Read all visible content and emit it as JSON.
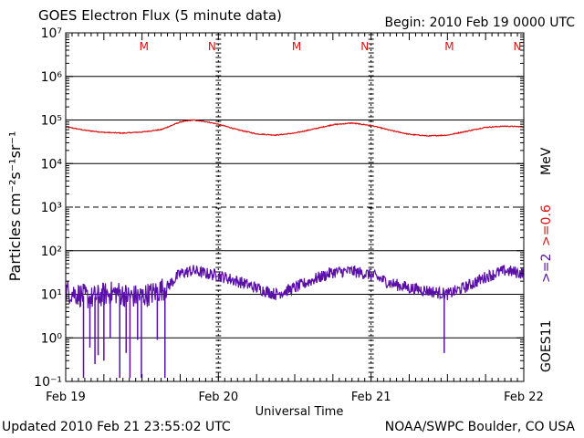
{
  "header": {
    "title": "GOES Electron Flux (5 minute data)",
    "begin": "Begin: 2010 Feb 19 0000 UTC"
  },
  "footer": {
    "updated": "Updated 2010 Feb 21 23:55:02 UTC",
    "credit": "NOAA/SWPC Boulder, CO USA"
  },
  "colors": {
    "series_2mev": "#5a0fa8",
    "series_06mev": "#dd1111",
    "marker_text": "#dd1111"
  },
  "chart_data": {
    "type": "line",
    "xlabel": "Universal Time",
    "ylabel": "Particles cm⁻²s⁻¹sr⁻¹",
    "y_scale": "log",
    "xlim_hours": [
      0,
      72
    ],
    "ylim": [
      0.1,
      10000000
    ],
    "y_ticks": [
      {
        "value": 0.1,
        "label": "10⁻¹"
      },
      {
        "value": 1,
        "label": "10⁰"
      },
      {
        "value": 10,
        "label": "10¹"
      },
      {
        "value": 100,
        "label": "10²"
      },
      {
        "value": 1000,
        "label": "10³"
      },
      {
        "value": 10000,
        "label": "10⁴"
      },
      {
        "value": 100000,
        "label": "10⁵"
      },
      {
        "value": 1000000,
        "label": "10⁶"
      },
      {
        "value": 10000000,
        "label": "10⁷"
      }
    ],
    "x_ticks": [
      {
        "hour": 0,
        "label": "Feb 19"
      },
      {
        "hour": 24,
        "label": "Feb 20"
      },
      {
        "hour": 48,
        "label": "Feb 21"
      },
      {
        "hour": 72,
        "label": "Feb 22"
      }
    ],
    "dashed_gridline_value": 1000,
    "day_dividers_hours": [
      24,
      48
    ],
    "markers": [
      {
        "hour": 12.3,
        "label": "M"
      },
      {
        "hour": 23.0,
        "label": "N"
      },
      {
        "hour": 36.3,
        "label": "M"
      },
      {
        "hour": 47.0,
        "label": "N"
      },
      {
        "hour": 60.3,
        "label": "M"
      },
      {
        "hour": 71.0,
        "label": "N"
      }
    ],
    "right_labels": {
      "energy_2": ">=2",
      "energy_06": ">=0.6",
      "unit": "MeV",
      "satellite": "GOES11"
    },
    "series": [
      {
        "name": ">=0.6",
        "color": "#dd1111",
        "x": [
          0,
          3,
          6,
          9,
          12,
          15,
          18,
          20,
          21,
          22,
          24,
          27,
          30,
          33,
          36,
          39,
          42,
          45,
          48,
          51,
          54,
          57,
          60,
          63,
          66,
          69,
          72
        ],
        "y": [
          70000,
          58000,
          52000,
          50000,
          53000,
          60000,
          90000,
          100000,
          95000,
          92000,
          80000,
          60000,
          48000,
          45000,
          50000,
          62000,
          78000,
          85000,
          75000,
          58000,
          47000,
          43000,
          45000,
          55000,
          68000,
          72000,
          70000
        ]
      },
      {
        "name": ">=2",
        "color": "#5a0fa8",
        "x": [
          0,
          2,
          4,
          6,
          8,
          10,
          12,
          14,
          16,
          18,
          20,
          22,
          24,
          27,
          30,
          33,
          36,
          39,
          42,
          45,
          48,
          51,
          54,
          57,
          60,
          63,
          66,
          69,
          72
        ],
        "y": [
          12,
          10,
          8,
          10,
          11,
          9,
          9,
          11,
          15,
          30,
          35,
          30,
          27,
          20,
          14,
          10,
          14,
          22,
          32,
          34,
          28,
          18,
          14,
          12,
          10,
          15,
          25,
          35,
          30
        ]
      }
    ],
    "dropouts_2mev": [
      {
        "hour": 2.8,
        "value": 0.12
      },
      {
        "hour": 3.8,
        "value": 0.6
      },
      {
        "hour": 4.6,
        "value": 0.25
      },
      {
        "hour": 5.1,
        "value": 0.4
      },
      {
        "hour": 6.0,
        "value": 0.3
      },
      {
        "hour": 7.0,
        "value": 1.0
      },
      {
        "hour": 8.5,
        "value": 0.12
      },
      {
        "hour": 9.5,
        "value": 0.45
      },
      {
        "hour": 10.1,
        "value": 0.12
      },
      {
        "hour": 11.3,
        "value": 0.9
      },
      {
        "hour": 11.9,
        "value": 0.12
      },
      {
        "hour": 14.4,
        "value": 0.9
      },
      {
        "hour": 15.6,
        "value": 0.12
      },
      {
        "hour": 59.5,
        "value": 0.45
      }
    ]
  }
}
